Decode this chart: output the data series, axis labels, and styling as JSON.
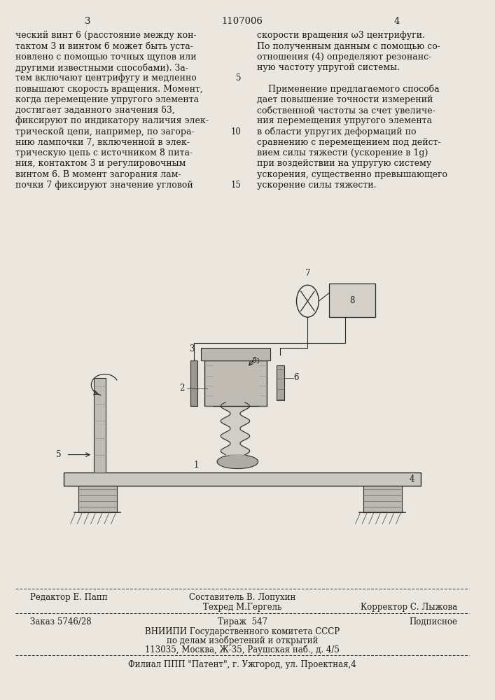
{
  "page_number_left": "3",
  "patent_number": "1107006",
  "page_number_right": "4",
  "col_left_text": [
    "ческий винт 6 (расстояние между кон-",
    "тактом 3 и винтом 6 может быть уста-",
    "новлено с помощью точных щупов или",
    "другими известными способами). За-",
    "тем включают центрифугу и медленно",
    "повышают скорость вращения. Момент,",
    "когда перемещение упругого элемента",
    "достигает заданного значения δ3,",
    "фиксируют по индикатору наличия элек-",
    "трической цепи, например, по загора-",
    "нию лампочки 7, включенной в элек-",
    "трическую цепь с источником 8 пита-",
    "ния, контактом 3 и регулировочным",
    "винтом 6. В момент загорания лам-",
    "почки 7 фиксируют значение угловой"
  ],
  "col_right_text": [
    "скорости вращения ω3 центрифуги.",
    "По полученным данным с помощью со-",
    "отношения (4) определяют резонанс-",
    "ную частоту упругой системы.",
    "",
    "    Применение предлагаемого способа",
    "дает повышение точности измерений",
    "собственной частоты за счет увеличе-",
    "ния перемещения упругого элемента",
    "в области упругих деформаций по",
    "сравнению с перемещением под дейст-",
    "вием силы тяжести (ускорение в 1g)",
    "при воздействии на упругую систему",
    "ускорения, существенно превышающего",
    "ускорение силы тяжести."
  ],
  "editor_line": "Редактор Е. Папп",
  "composer_line": "Составитель В. Лопухин",
  "techred_line": "Техред М.Гергель",
  "corrector_line": "Корректор С. Лыжова",
  "order_line": "Заказ 5746/28",
  "tirazh_line": "Тираж  547",
  "podpisnoe_line": "Подписное",
  "vniipи_line": "ВНИИПИ Государственного комитета СССР",
  "po_delam_line": "по делам изобретений и открытий",
  "address_line": "113035, Москва, Ж-35, Раушская наб., д. 4/5",
  "filial_line": "Филиал ППП \"Патент\", г. Ужгород, ул. Проектная,4",
  "bg_color": "#ebe7de",
  "text_color": "#1a1a1a",
  "font_size_main": 9.0,
  "font_size_header": 9.5,
  "font_size_footer": 8.5
}
